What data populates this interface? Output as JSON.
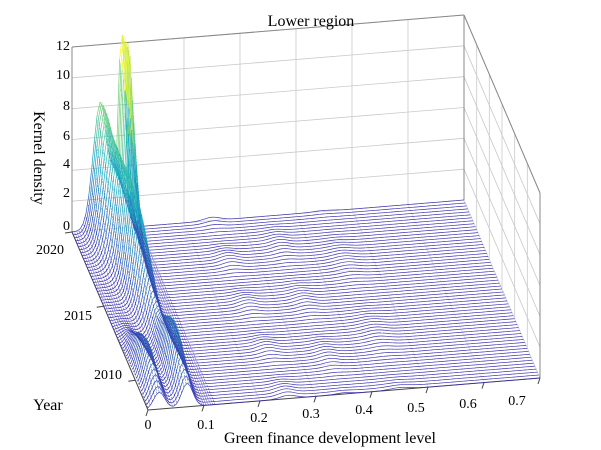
{
  "chart_data": {
    "type": "surface",
    "title": "Lower region",
    "xlabel": "Green finance development level",
    "ylabel": "Year",
    "zlabel": "Kernel density",
    "x_ticks": [
      "0",
      "0.1",
      "0.2",
      "0.3",
      "0.4",
      "0.5",
      "0.6",
      "0.7"
    ],
    "y_ticks": [
      "2010",
      "2015",
      "2020"
    ],
    "z_ticks": [
      "0",
      "2",
      "4",
      "6",
      "8",
      "10",
      "12"
    ],
    "xlim": [
      0,
      0.7
    ],
    "ylim": [
      2008,
      2020
    ],
    "zlim": [
      0,
      12
    ],
    "grid": true,
    "colormap": "parula",
    "colors": {
      "low": "#3b2fb0",
      "mid": "#16b2c3",
      "high": "#f9fb0e"
    },
    "peaks": [
      {
        "year": 2010,
        "x": 0.02,
        "density": 2.5
      },
      {
        "year": 2010,
        "x": 0.07,
        "density": 3.5
      },
      {
        "year": 2015,
        "x": 0.07,
        "density": 4
      },
      {
        "year": 2017,
        "x": 0.06,
        "density": 5
      },
      {
        "year": 2020,
        "x": 0.05,
        "density": 7.8
      },
      {
        "year": 2020,
        "x": 0.085,
        "density": 4.5
      },
      {
        "year": 2020,
        "x": 0.09,
        "density": 12.5
      }
    ]
  }
}
